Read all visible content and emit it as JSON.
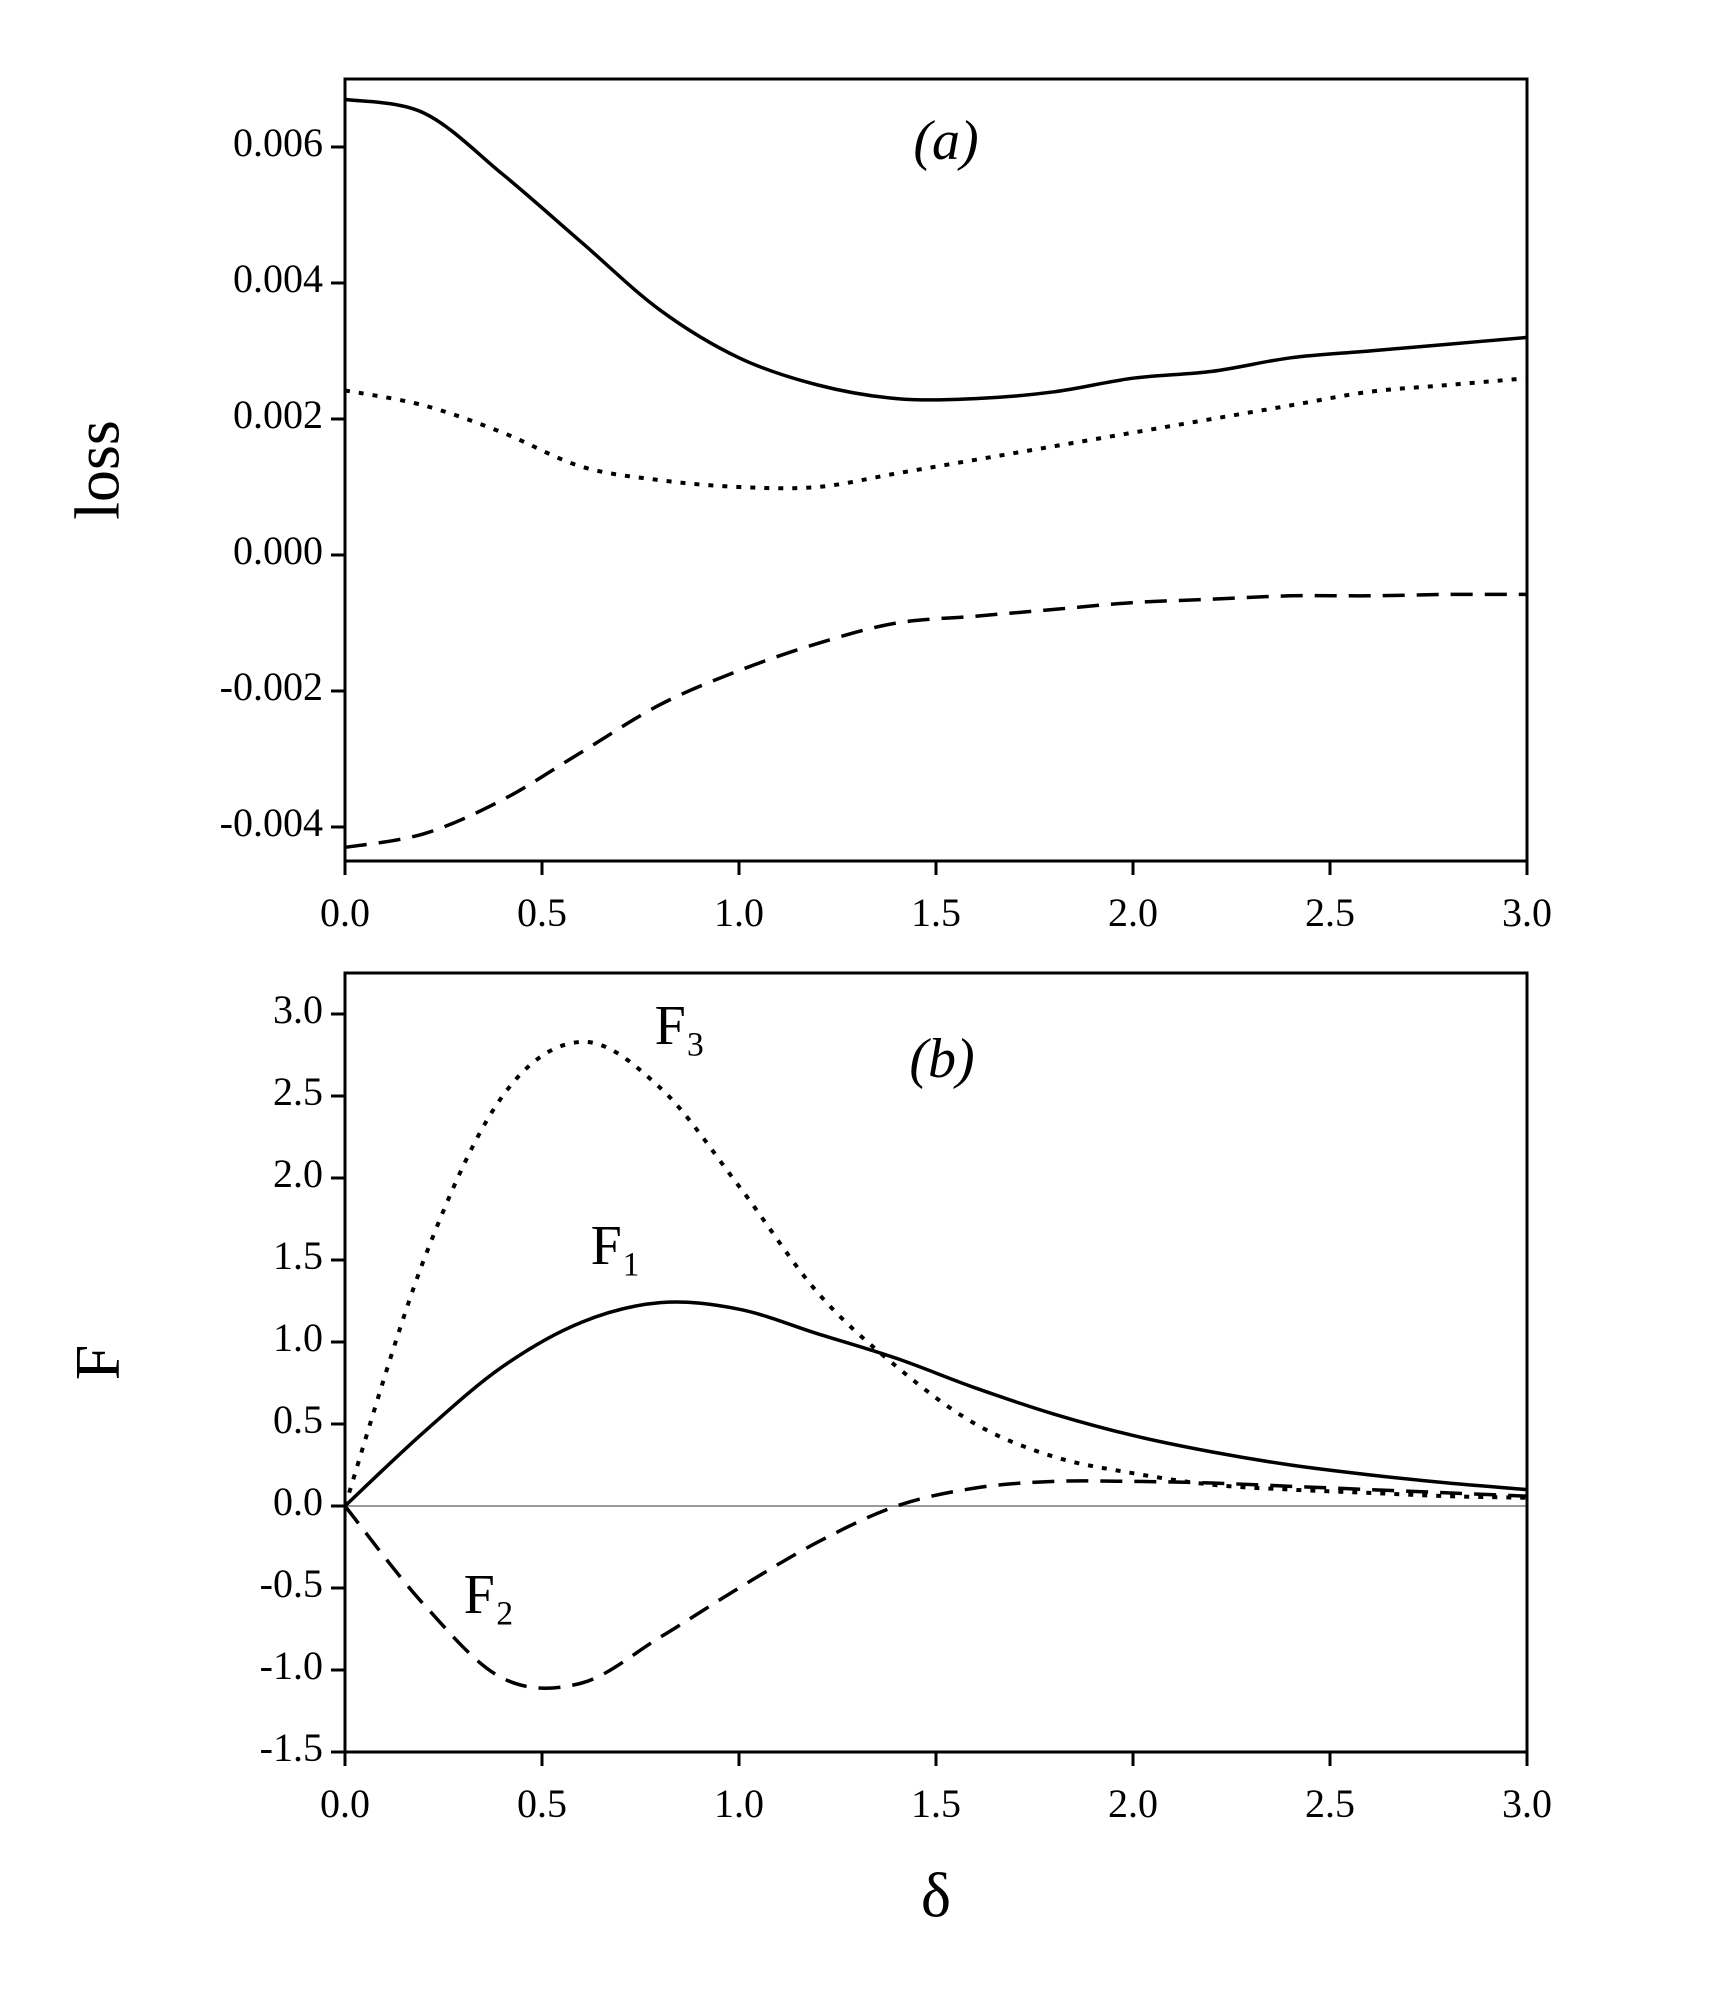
{
  "chart_data": [
    {
      "type": "line",
      "annotation": "(a)",
      "y_label": "loss",
      "x": [
        0,
        0.2,
        0.4,
        0.6,
        0.8,
        1.0,
        1.2,
        1.4,
        1.6,
        1.8,
        2.0,
        2.2,
        2.4,
        2.6,
        2.8,
        3.0
      ],
      "series": [
        {
          "color": "#000000",
          "dash": "solid",
          "values": [
            0.0067,
            0.0065,
            0.0056,
            0.0046,
            0.0036,
            0.0029,
            0.0025,
            0.0023,
            0.0023,
            0.0024,
            0.0026,
            0.0027,
            0.0029,
            0.003,
            0.0031,
            0.0032
          ]
        },
        {
          "color": "#000000",
          "dash": "dotted",
          "values": [
            0.00242,
            0.0022,
            0.0018,
            0.0013,
            0.0011,
            0.001,
            0.001,
            0.0012,
            0.0014,
            0.0016,
            0.0018,
            0.002,
            0.0022,
            0.0024,
            0.0025,
            0.0026
          ]
        },
        {
          "color": "#000000",
          "dash": "dashed",
          "values": [
            -0.0043,
            -0.0041,
            -0.0036,
            -0.0029,
            -0.0022,
            -0.0017,
            -0.0013,
            -0.001,
            -0.0009,
            -0.0008,
            -0.0007,
            -0.00065,
            -0.0006,
            -0.0006,
            -0.00058,
            -0.00058
          ]
        }
      ],
      "xlim": [
        0,
        3
      ],
      "xticks": [
        {
          "value": 0,
          "label": "0.0"
        },
        0.5,
        {
          "value": 1,
          "label": "1.0"
        },
        1.5,
        {
          "value": 2,
          "label": "2.0"
        },
        2.5,
        {
          "value": 3,
          "label": "3.0"
        }
      ],
      "ylim": [
        -0.0045,
        0.007
      ],
      "yticks": [
        -0.004,
        -0.002,
        {
          "value": 0,
          "label": "0.000"
        },
        0.002,
        0.004,
        0.006
      ],
      "zero_line": false
    },
    {
      "type": "line",
      "annotation": "(b)",
      "y_label": "F",
      "x_label": "δ",
      "labels": [
        "F₃",
        "F₁",
        "F₂"
      ],
      "x": [
        0,
        0.2,
        0.4,
        0.6,
        0.8,
        1.0,
        1.2,
        1.4,
        1.6,
        1.8,
        2.0,
        2.2,
        2.4,
        2.6,
        2.8,
        3.0
      ],
      "series": [
        {
          "color": "#000000",
          "dash": "dotted",
          "values": [
            0,
            1.5,
            2.5,
            2.83,
            2.55,
            1.95,
            1.3,
            0.85,
            0.5,
            0.3,
            0.2,
            0.13,
            0.1,
            0.08,
            0.06,
            0.05
          ]
        },
        {
          "color": "#000000",
          "dash": "solid",
          "values": [
            0,
            0.45,
            0.85,
            1.12,
            1.24,
            1.2,
            1.05,
            0.9,
            0.72,
            0.56,
            0.43,
            0.33,
            0.25,
            0.19,
            0.14,
            0.1
          ]
        },
        {
          "color": "#000000",
          "dash": "dashed",
          "values": [
            0,
            -0.6,
            -1.05,
            -1.08,
            -0.8,
            -0.5,
            -0.22,
            0,
            0.11,
            0.15,
            0.15,
            0.14,
            0.12,
            0.1,
            0.08,
            0.06
          ]
        }
      ],
      "xlim": [
        0,
        3
      ],
      "xticks": [
        {
          "value": 0,
          "label": "0.0"
        },
        0.5,
        {
          "value": 1,
          "label": "1.0"
        },
        1.5,
        {
          "value": 2,
          "label": "2.0"
        },
        2.5,
        {
          "value": 3,
          "label": "3.0"
        }
      ],
      "ylim": [
        -1.5,
        3.25
      ],
      "yticks": [
        -1.5,
        {
          "value": -1,
          "label": "-1.0"
        },
        -0.5,
        {
          "value": 0,
          "label": "0.0"
        },
        0.5,
        {
          "value": 1,
          "label": "1.0"
        },
        1.5,
        {
          "value": 2,
          "label": "2.0"
        },
        2.5,
        {
          "value": 3,
          "label": "3.0"
        }
      ],
      "zero_line": true
    }
  ]
}
